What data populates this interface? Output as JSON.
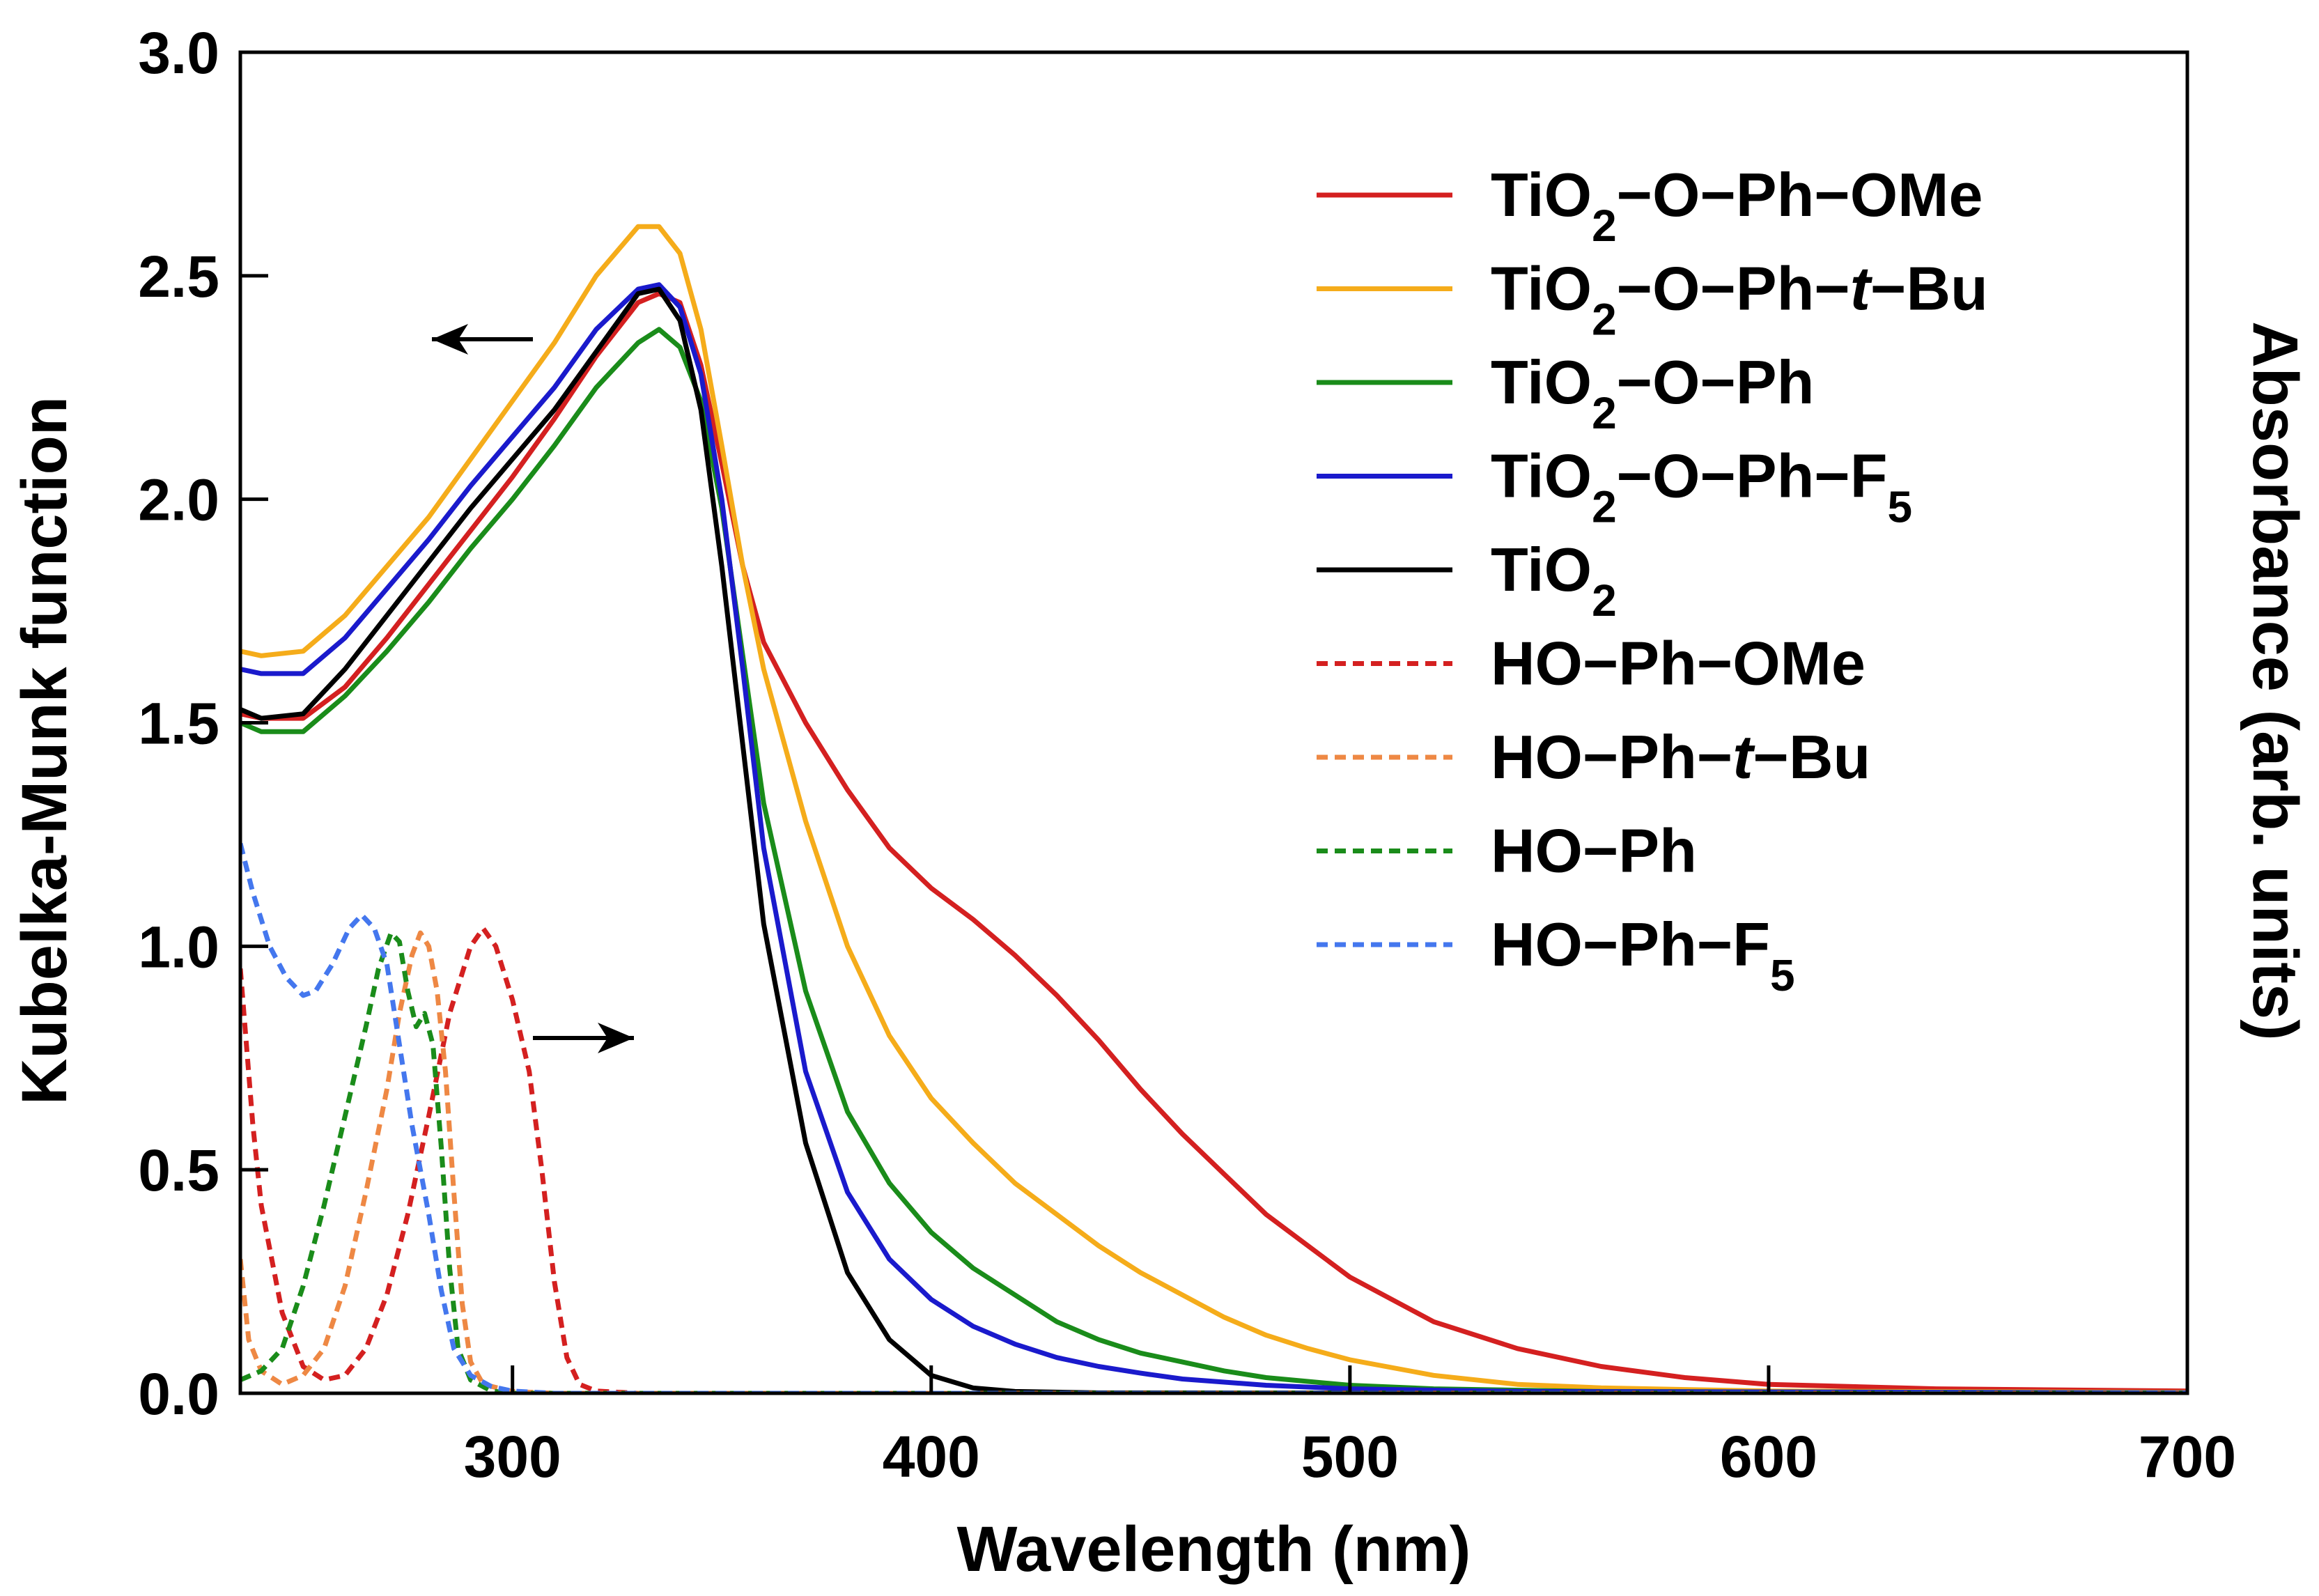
{
  "chart_data": {
    "type": "line",
    "xlabel": "Wavelength (nm)",
    "ylabel": "Kubelka-Munk function",
    "y2label": "Absorbance (arb. units)",
    "xlim": [
      235,
      700
    ],
    "ylim": [
      0,
      3.0
    ],
    "x_ticks": [
      300,
      400,
      500,
      600,
      700
    ],
    "x_tick_labels": [
      "300",
      "400",
      "500",
      "600",
      "700"
    ],
    "y_ticks": [
      0,
      0.5,
      1.0,
      1.5,
      2.0,
      2.5,
      3.0
    ],
    "y_tick_labels": [
      "0.0",
      "0.5",
      "1.0",
      "1.5",
      "2.0",
      "2.5",
      "3.0"
    ],
    "grid": false,
    "legend_position": "top-right",
    "arrows": [
      {
        "name": "left-arrow",
        "direction": "left",
        "points_to": "left axis"
      },
      {
        "name": "right-arrow",
        "direction": "right",
        "points_to": "right axis"
      }
    ],
    "series": [
      {
        "label_parts": [
          [
            "TiO",
            "n"
          ],
          [
            "2",
            "sub"
          ],
          [
            "−O−Ph−OMe",
            "n"
          ]
        ],
        "color": "#d42020",
        "dash": "solid",
        "points": [
          [
            235,
            1.52
          ],
          [
            240,
            1.51
          ],
          [
            250,
            1.51
          ],
          [
            260,
            1.58
          ],
          [
            270,
            1.69
          ],
          [
            280,
            1.81
          ],
          [
            290,
            1.93
          ],
          [
            300,
            2.05
          ],
          [
            310,
            2.18
          ],
          [
            320,
            2.32
          ],
          [
            330,
            2.44
          ],
          [
            335,
            2.46
          ],
          [
            340,
            2.44
          ],
          [
            345,
            2.3
          ],
          [
            350,
            2.08
          ],
          [
            355,
            1.85
          ],
          [
            360,
            1.68
          ],
          [
            370,
            1.5
          ],
          [
            380,
            1.35
          ],
          [
            390,
            1.22
          ],
          [
            400,
            1.13
          ],
          [
            410,
            1.06
          ],
          [
            420,
            0.98
          ],
          [
            430,
            0.89
          ],
          [
            440,
            0.79
          ],
          [
            450,
            0.68
          ],
          [
            460,
            0.58
          ],
          [
            470,
            0.49
          ],
          [
            480,
            0.4
          ],
          [
            490,
            0.33
          ],
          [
            500,
            0.26
          ],
          [
            520,
            0.16
          ],
          [
            540,
            0.1
          ],
          [
            560,
            0.06
          ],
          [
            580,
            0.035
          ],
          [
            600,
            0.02
          ],
          [
            640,
            0.01
          ],
          [
            700,
            0.005
          ]
        ]
      },
      {
        "label_parts": [
          [
            "TiO",
            "n"
          ],
          [
            "2",
            "sub"
          ],
          [
            "−O−Ph−",
            "n"
          ],
          [
            "t",
            "it"
          ],
          [
            "−Bu",
            "n"
          ]
        ],
        "color": "#f5ac1a",
        "dash": "solid",
        "points": [
          [
            235,
            1.66
          ],
          [
            240,
            1.65
          ],
          [
            250,
            1.66
          ],
          [
            260,
            1.74
          ],
          [
            270,
            1.85
          ],
          [
            280,
            1.96
          ],
          [
            290,
            2.09
          ],
          [
            300,
            2.22
          ],
          [
            310,
            2.35
          ],
          [
            320,
            2.5
          ],
          [
            330,
            2.61
          ],
          [
            335,
            2.61
          ],
          [
            340,
            2.55
          ],
          [
            345,
            2.38
          ],
          [
            350,
            2.12
          ],
          [
            355,
            1.85
          ],
          [
            360,
            1.62
          ],
          [
            370,
            1.28
          ],
          [
            380,
            1.0
          ],
          [
            390,
            0.8
          ],
          [
            400,
            0.66
          ],
          [
            410,
            0.56
          ],
          [
            420,
            0.47
          ],
          [
            430,
            0.4
          ],
          [
            440,
            0.33
          ],
          [
            450,
            0.27
          ],
          [
            460,
            0.22
          ],
          [
            470,
            0.17
          ],
          [
            480,
            0.13
          ],
          [
            490,
            0.1
          ],
          [
            500,
            0.075
          ],
          [
            520,
            0.04
          ],
          [
            540,
            0.02
          ],
          [
            560,
            0.012
          ],
          [
            600,
            0.005
          ],
          [
            700,
            0.002
          ]
        ]
      },
      {
        "label_parts": [
          [
            "TiO",
            "n"
          ],
          [
            "2",
            "sub"
          ],
          [
            "−O−Ph",
            "n"
          ]
        ],
        "color": "#1a8c1a",
        "dash": "solid",
        "points": [
          [
            235,
            1.5
          ],
          [
            240,
            1.48
          ],
          [
            250,
            1.48
          ],
          [
            260,
            1.56
          ],
          [
            270,
            1.66
          ],
          [
            280,
            1.77
          ],
          [
            290,
            1.89
          ],
          [
            300,
            2.0
          ],
          [
            310,
            2.12
          ],
          [
            320,
            2.25
          ],
          [
            330,
            2.35
          ],
          [
            335,
            2.38
          ],
          [
            340,
            2.34
          ],
          [
            345,
            2.22
          ],
          [
            350,
            1.98
          ],
          [
            355,
            1.65
          ],
          [
            360,
            1.32
          ],
          [
            370,
            0.9
          ],
          [
            380,
            0.63
          ],
          [
            390,
            0.47
          ],
          [
            400,
            0.36
          ],
          [
            410,
            0.28
          ],
          [
            420,
            0.22
          ],
          [
            430,
            0.16
          ],
          [
            440,
            0.12
          ],
          [
            450,
            0.09
          ],
          [
            460,
            0.07
          ],
          [
            470,
            0.05
          ],
          [
            480,
            0.035
          ],
          [
            500,
            0.018
          ],
          [
            520,
            0.01
          ],
          [
            560,
            0.004
          ],
          [
            700,
            0.001
          ]
        ]
      },
      {
        "label_parts": [
          [
            "TiO",
            "n"
          ],
          [
            "2",
            "sub"
          ],
          [
            "−O−Ph−F",
            "n"
          ],
          [
            "5",
            "sub"
          ]
        ],
        "color": "#1a1acc",
        "dash": "solid",
        "points": [
          [
            235,
            1.62
          ],
          [
            240,
            1.61
          ],
          [
            250,
            1.61
          ],
          [
            260,
            1.69
          ],
          [
            270,
            1.8
          ],
          [
            280,
            1.91
          ],
          [
            290,
            2.03
          ],
          [
            300,
            2.14
          ],
          [
            310,
            2.25
          ],
          [
            320,
            2.38
          ],
          [
            330,
            2.47
          ],
          [
            335,
            2.48
          ],
          [
            340,
            2.43
          ],
          [
            345,
            2.28
          ],
          [
            350,
            2.0
          ],
          [
            355,
            1.62
          ],
          [
            360,
            1.22
          ],
          [
            370,
            0.72
          ],
          [
            380,
            0.45
          ],
          [
            390,
            0.3
          ],
          [
            400,
            0.21
          ],
          [
            410,
            0.15
          ],
          [
            420,
            0.11
          ],
          [
            430,
            0.08
          ],
          [
            440,
            0.06
          ],
          [
            450,
            0.045
          ],
          [
            460,
            0.032
          ],
          [
            480,
            0.018
          ],
          [
            500,
            0.01
          ],
          [
            540,
            0.004
          ],
          [
            700,
            0.001
          ]
        ]
      },
      {
        "label_parts": [
          [
            "TiO",
            "n"
          ],
          [
            "2",
            "sub"
          ]
        ],
        "color": "#000000",
        "dash": "solid",
        "points": [
          [
            235,
            1.53
          ],
          [
            240,
            1.51
          ],
          [
            250,
            1.52
          ],
          [
            260,
            1.62
          ],
          [
            270,
            1.74
          ],
          [
            280,
            1.86
          ],
          [
            290,
            1.98
          ],
          [
            300,
            2.09
          ],
          [
            310,
            2.2
          ],
          [
            320,
            2.33
          ],
          [
            330,
            2.46
          ],
          [
            335,
            2.47
          ],
          [
            340,
            2.4
          ],
          [
            345,
            2.2
          ],
          [
            350,
            1.85
          ],
          [
            355,
            1.45
          ],
          [
            360,
            1.05
          ],
          [
            370,
            0.56
          ],
          [
            380,
            0.27
          ],
          [
            390,
            0.12
          ],
          [
            400,
            0.04
          ],
          [
            410,
            0.012
          ],
          [
            420,
            0.004
          ],
          [
            440,
            0.001
          ],
          [
            700,
            0.0
          ]
        ]
      },
      {
        "label_parts": [
          [
            "HO−Ph−OMe",
            "n"
          ]
        ],
        "color": "#d42020",
        "dash": "dashed",
        "points": [
          [
            235,
            0.95
          ],
          [
            238,
            0.6
          ],
          [
            240,
            0.42
          ],
          [
            245,
            0.18
          ],
          [
            250,
            0.06
          ],
          [
            255,
            0.03
          ],
          [
            260,
            0.04
          ],
          [
            265,
            0.1
          ],
          [
            270,
            0.22
          ],
          [
            275,
            0.4
          ],
          [
            280,
            0.62
          ],
          [
            285,
            0.85
          ],
          [
            290,
            1.0
          ],
          [
            293,
            1.04
          ],
          [
            296,
            1.0
          ],
          [
            300,
            0.88
          ],
          [
            304,
            0.72
          ],
          [
            307,
            0.5
          ],
          [
            310,
            0.25
          ],
          [
            313,
            0.08
          ],
          [
            316,
            0.02
          ],
          [
            320,
            0.005
          ],
          [
            330,
            0.0
          ],
          [
            700,
            0.0
          ]
        ]
      },
      {
        "label_parts": [
          [
            "HO−Ph−",
            "n"
          ],
          [
            "t",
            "it"
          ],
          [
            "−Bu",
            "n"
          ]
        ],
        "color": "#ee8844",
        "dash": "dashed",
        "points": [
          [
            235,
            0.3
          ],
          [
            237,
            0.12
          ],
          [
            240,
            0.05
          ],
          [
            245,
            0.02
          ],
          [
            250,
            0.04
          ],
          [
            255,
            0.1
          ],
          [
            260,
            0.24
          ],
          [
            265,
            0.45
          ],
          [
            270,
            0.68
          ],
          [
            273,
            0.85
          ],
          [
            276,
            0.98
          ],
          [
            278,
            1.03
          ],
          [
            280,
            1.0
          ],
          [
            282,
            0.9
          ],
          [
            284,
            0.72
          ],
          [
            286,
            0.45
          ],
          [
            288,
            0.2
          ],
          [
            290,
            0.07
          ],
          [
            293,
            0.02
          ],
          [
            300,
            0.004
          ],
          [
            310,
            0.0
          ],
          [
            700,
            0.0
          ]
        ]
      },
      {
        "label_parts": [
          [
            "HO−Ph",
            "n"
          ]
        ],
        "color": "#1a8c1a",
        "dash": "dashed",
        "points": [
          [
            235,
            0.03
          ],
          [
            240,
            0.05
          ],
          [
            245,
            0.1
          ],
          [
            250,
            0.24
          ],
          [
            255,
            0.42
          ],
          [
            260,
            0.62
          ],
          [
            265,
            0.82
          ],
          [
            268,
            0.95
          ],
          [
            271,
            1.03
          ],
          [
            273,
            1.01
          ],
          [
            275,
            0.9
          ],
          [
            277,
            0.82
          ],
          [
            279,
            0.85
          ],
          [
            281,
            0.78
          ],
          [
            283,
            0.55
          ],
          [
            285,
            0.28
          ],
          [
            287,
            0.1
          ],
          [
            290,
            0.03
          ],
          [
            295,
            0.005
          ],
          [
            300,
            0.0
          ],
          [
            700,
            0.0
          ]
        ]
      },
      {
        "label_parts": [
          [
            "HO−Ph−F",
            "n"
          ],
          [
            "5",
            "sub"
          ]
        ],
        "color": "#4477ee",
        "dash": "dashed",
        "points": [
          [
            235,
            1.23
          ],
          [
            238,
            1.12
          ],
          [
            242,
            1.0
          ],
          [
            246,
            0.93
          ],
          [
            250,
            0.89
          ],
          [
            253,
            0.9
          ],
          [
            257,
            0.96
          ],
          [
            261,
            1.04
          ],
          [
            264,
            1.07
          ],
          [
            267,
            1.04
          ],
          [
            270,
            0.96
          ],
          [
            273,
            0.78
          ],
          [
            276,
            0.6
          ],
          [
            280,
            0.4
          ],
          [
            283,
            0.23
          ],
          [
            286,
            0.1
          ],
          [
            290,
            0.04
          ],
          [
            295,
            0.015
          ],
          [
            300,
            0.005
          ],
          [
            310,
            0.0
          ],
          [
            700,
            0.0
          ]
        ]
      }
    ]
  }
}
